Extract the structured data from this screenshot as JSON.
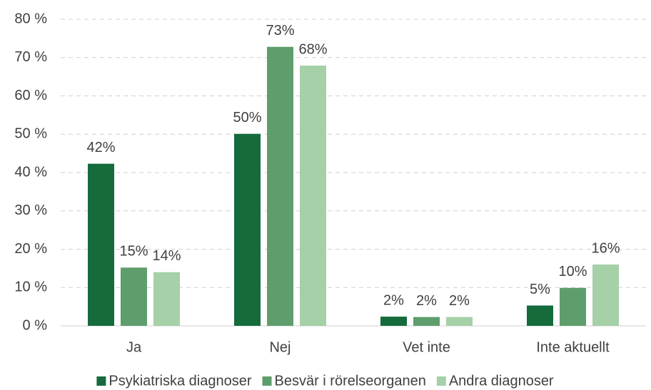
{
  "chart_data": {
    "type": "bar",
    "categories": [
      "Ja",
      "Nej",
      "Vet inte",
      "Inte aktuellt"
    ],
    "series": [
      {
        "name": "Psykiatriska diagnoser",
        "color": "#156b3c",
        "values": [
          42.3,
          50.1,
          2.4,
          5.3
        ],
        "value_labels": [
          "42%",
          "50%",
          "2%",
          "5%"
        ]
      },
      {
        "name": "Besvär i rörelseorganen",
        "color": "#5e9e6c",
        "values": [
          15.2,
          72.8,
          2.3,
          9.9
        ],
        "value_labels": [
          "15%",
          "73%",
          "2%",
          "10%"
        ]
      },
      {
        "name": "Andra diagnoser",
        "color": "#a5d0a8",
        "values": [
          14.0,
          67.9,
          2.3,
          16.0
        ],
        "value_labels": [
          "14%",
          "68%",
          "2%",
          "16%"
        ]
      }
    ],
    "ylim": [
      0,
      80
    ],
    "yticks": [
      {
        "value": 0,
        "label": "0 %"
      },
      {
        "value": 10,
        "label": "10 %"
      },
      {
        "value": 20,
        "label": "20 %"
      },
      {
        "value": 30,
        "label": "30 %"
      },
      {
        "value": 40,
        "label": "40 %"
      },
      {
        "value": 50,
        "label": "50 %"
      },
      {
        "value": 60,
        "label": "60 %"
      },
      {
        "value": 70,
        "label": "70 %"
      },
      {
        "value": 80,
        "label": "80 %"
      }
    ],
    "grid": true,
    "legend": "bottom"
  }
}
